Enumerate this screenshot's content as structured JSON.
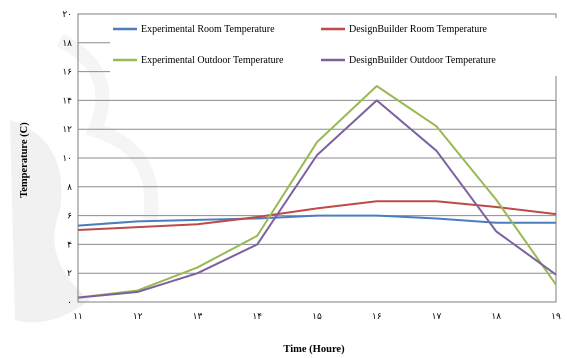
{
  "chart_data": {
    "type": "line",
    "xlabel": "Time (Houre)",
    "ylabel": "Temperature (C)",
    "x": [
      11,
      12,
      13,
      14,
      15,
      16,
      17,
      18,
      19
    ],
    "x_tick_labels": [
      "۱۱",
      "۱۲",
      "۱۳",
      "۱۴",
      "۱۵",
      "۱۶",
      "۱۷",
      "۱۸",
      "۱۹"
    ],
    "ylim": [
      0,
      20
    ],
    "y_ticks": [
      0,
      2,
      4,
      6,
      8,
      10,
      12,
      14,
      16,
      18,
      20
    ],
    "y_tick_labels": [
      "۰",
      "۲",
      "۴",
      "۶",
      "۸",
      "۱۰",
      "۱۲",
      "۱۴",
      "۱۶",
      "۱۸",
      "۲۰"
    ],
    "grid": "horizontal",
    "legend_position": "top",
    "series": [
      {
        "name": "Experimental Room Temperature",
        "color": "#4a7ebb",
        "values": [
          5.3,
          5.6,
          5.7,
          5.8,
          6.0,
          6.0,
          5.8,
          5.5,
          5.5
        ]
      },
      {
        "name": "DesignBuilder Room Temperature",
        "color": "#be4b48",
        "values": [
          5.0,
          5.2,
          5.4,
          5.9,
          6.5,
          7.0,
          7.0,
          6.6,
          6.1
        ]
      },
      {
        "name": "Experimental Outdoor Temperature",
        "color": "#98b954",
        "values": [
          0.3,
          0.8,
          2.4,
          4.6,
          11.1,
          15.0,
          12.2,
          7.1,
          1.2
        ]
      },
      {
        "name": "DesignBuilder Outdoor Temperature",
        "color": "#7d60a0",
        "values": [
          0.3,
          0.7,
          2.0,
          4.0,
          10.2,
          14.0,
          10.5,
          4.9,
          1.9
        ]
      }
    ]
  }
}
